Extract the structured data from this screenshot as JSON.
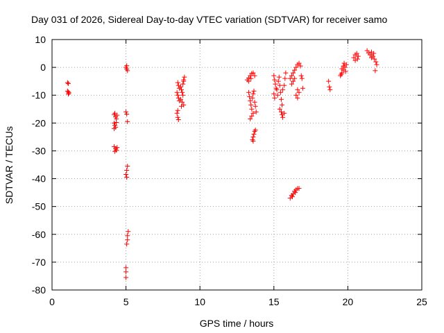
{
  "chart_data": {
    "type": "scatter",
    "title": "Day 031 of 2026, Sidereal Day-to-day VTEC variation (SDTVAR) for receiver samo",
    "xlabel": "GPS time / hours",
    "ylabel": "SDTVAR / TECUs",
    "xlim": [
      0,
      25
    ],
    "ylim": [
      -80,
      10
    ],
    "xticks": [
      0,
      5,
      10,
      15,
      20,
      25
    ],
    "yticks": [
      10,
      0,
      -10,
      -20,
      -30,
      -40,
      -50,
      -60,
      -70,
      -80
    ],
    "grid": true,
    "marker": "+",
    "color": "#ff0000",
    "series": [
      {
        "name": "SDTVAR",
        "points": [
          [
            1.05,
            -5.5
          ],
          [
            1.1,
            -5.8
          ],
          [
            1.05,
            -8.5
          ],
          [
            1.1,
            -8.9
          ],
          [
            1.15,
            -9.2
          ],
          [
            1.1,
            -9.6
          ],
          [
            4.2,
            -17
          ],
          [
            4.3,
            -17.8
          ],
          [
            4.35,
            -18.5
          ],
          [
            4.25,
            -16.5
          ],
          [
            4.4,
            -17.2
          ],
          [
            4.2,
            -20
          ],
          [
            4.25,
            -20.8
          ],
          [
            4.3,
            -21.5
          ],
          [
            4.35,
            -19.8
          ],
          [
            4.2,
            -22
          ],
          [
            4.2,
            -28.5
          ],
          [
            4.3,
            -29.2
          ],
          [
            4.35,
            -29.8
          ],
          [
            4.25,
            -30.2
          ],
          [
            4.4,
            -28.8
          ],
          [
            5.0,
            0
          ],
          [
            5.05,
            0.6
          ],
          [
            5.1,
            -1.2
          ],
          [
            5.05,
            -0.6
          ],
          [
            5.0,
            -16
          ],
          [
            5.05,
            -16.8
          ],
          [
            5.1,
            -19.5
          ],
          [
            5.1,
            -35.5
          ],
          [
            5.05,
            -37
          ],
          [
            5.0,
            -38.5
          ],
          [
            5.05,
            -39.5
          ],
          [
            5.15,
            -59
          ],
          [
            5.1,
            -60.5
          ],
          [
            5.1,
            -62
          ],
          [
            5.05,
            -63.5
          ],
          [
            5.0,
            -72
          ],
          [
            5.0,
            -73.5
          ],
          [
            5.0,
            -75.5
          ],
          [
            8.5,
            -5.5
          ],
          [
            8.55,
            -6.5
          ],
          [
            8.6,
            -7.5
          ],
          [
            8.45,
            -9
          ],
          [
            8.5,
            -10
          ],
          [
            8.55,
            -11
          ],
          [
            8.6,
            -12
          ],
          [
            8.5,
            -15.5
          ],
          [
            8.45,
            -16.5
          ],
          [
            8.5,
            -18
          ],
          [
            8.55,
            -18.8
          ],
          [
            8.7,
            -7
          ],
          [
            8.75,
            -8
          ],
          [
            8.8,
            -9
          ],
          [
            8.85,
            -10
          ],
          [
            8.7,
            -11.5
          ],
          [
            8.8,
            -12.5
          ],
          [
            8.9,
            -13.5
          ],
          [
            8.75,
            -14
          ],
          [
            8.85,
            -6
          ],
          [
            8.9,
            -5
          ],
          [
            8.95,
            -3.5
          ],
          [
            8.9,
            -4.5
          ],
          [
            13.2,
            -4.5
          ],
          [
            13.3,
            -3.8
          ],
          [
            13.4,
            -3
          ],
          [
            13.5,
            -2.2
          ],
          [
            13.6,
            -2
          ],
          [
            13.7,
            -3
          ],
          [
            13.3,
            -5
          ],
          [
            13.45,
            -4
          ],
          [
            13.3,
            -9
          ],
          [
            13.35,
            -10.5
          ],
          [
            13.4,
            -12
          ],
          [
            13.45,
            -13.5
          ],
          [
            13.5,
            -15
          ],
          [
            13.55,
            -11
          ],
          [
            13.6,
            -9.5
          ],
          [
            13.65,
            -8.5
          ],
          [
            13.7,
            -12.5
          ],
          [
            13.75,
            -14
          ],
          [
            13.8,
            -16
          ],
          [
            13.4,
            -18.5
          ],
          [
            13.5,
            -17.5
          ],
          [
            13.6,
            -16.5
          ],
          [
            13.55,
            -26
          ],
          [
            13.6,
            -25
          ],
          [
            13.65,
            -24
          ],
          [
            13.7,
            -23
          ],
          [
            13.75,
            -22.5
          ],
          [
            13.6,
            -26.5
          ],
          [
            15.0,
            -3
          ],
          [
            15.05,
            -4.5
          ],
          [
            15.1,
            -6
          ],
          [
            15.15,
            -7.5
          ],
          [
            15.0,
            -9.5
          ],
          [
            15.05,
            -11
          ],
          [
            15.2,
            -8
          ],
          [
            15.25,
            -10
          ],
          [
            15.3,
            -5
          ],
          [
            15.35,
            -3.5
          ],
          [
            15.4,
            -6.5
          ],
          [
            15.45,
            -9
          ],
          [
            15.5,
            -11.5
          ],
          [
            15.55,
            -13.5
          ],
          [
            15.6,
            -8
          ],
          [
            15.7,
            -6.5
          ],
          [
            15.75,
            -4
          ],
          [
            15.8,
            -2
          ],
          [
            15.4,
            -15
          ],
          [
            15.5,
            -16
          ],
          [
            15.55,
            -17
          ],
          [
            15.6,
            -18
          ],
          [
            15.7,
            -16.5
          ],
          [
            16.1,
            -4
          ],
          [
            16.2,
            -3
          ],
          [
            16.3,
            -2
          ],
          [
            16.4,
            -1
          ],
          [
            16.5,
            0
          ],
          [
            16.6,
            1
          ],
          [
            16.7,
            1.5
          ],
          [
            16.8,
            0.5
          ],
          [
            16.2,
            -6
          ],
          [
            16.3,
            -5
          ],
          [
            16.4,
            -4
          ],
          [
            16.6,
            -8
          ],
          [
            16.7,
            -9
          ],
          [
            16.5,
            -10
          ],
          [
            16.6,
            -11
          ],
          [
            16.85,
            -3
          ],
          [
            16.9,
            -4
          ],
          [
            16.95,
            -7.5
          ],
          [
            16.1,
            -47
          ],
          [
            16.2,
            -46
          ],
          [
            16.3,
            -45.5
          ],
          [
            16.4,
            -44.5
          ],
          [
            16.5,
            -44
          ],
          [
            16.6,
            -43.5
          ],
          [
            16.7,
            -43.5
          ],
          [
            16.25,
            -46.5
          ],
          [
            16.45,
            -45
          ],
          [
            18.7,
            -5
          ],
          [
            18.75,
            -7
          ],
          [
            18.8,
            -8
          ],
          [
            19.5,
            -3
          ],
          [
            19.6,
            -2
          ],
          [
            19.7,
            -1
          ],
          [
            19.8,
            0
          ],
          [
            19.9,
            1
          ],
          [
            19.6,
            -0.5
          ],
          [
            19.7,
            0.5
          ],
          [
            19.75,
            1.5
          ],
          [
            19.85,
            -1.5
          ],
          [
            19.55,
            -2.5
          ],
          [
            20.4,
            3.5
          ],
          [
            20.5,
            4.5
          ],
          [
            20.6,
            5
          ],
          [
            20.7,
            4
          ],
          [
            20.5,
            2.5
          ],
          [
            20.65,
            3
          ],
          [
            21.3,
            6
          ],
          [
            21.4,
            5.2
          ],
          [
            21.5,
            4.5
          ],
          [
            21.6,
            5.5
          ],
          [
            21.7,
            4
          ],
          [
            21.8,
            3
          ],
          [
            21.9,
            2
          ],
          [
            21.95,
            1
          ],
          [
            21.85,
            -1.2
          ],
          [
            21.6,
            3.5
          ],
          [
            21.75,
            5
          ]
        ]
      }
    ]
  }
}
